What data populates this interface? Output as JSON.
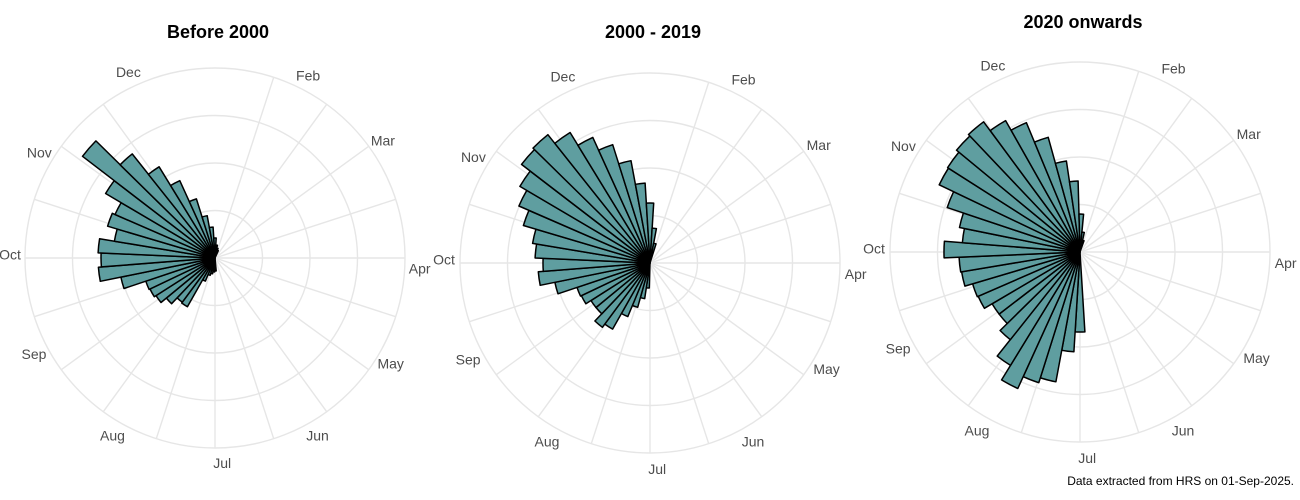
{
  "caption": "Data extracted from HRS on 01-Sep-2025.",
  "colors": {
    "bar_fill": "#5f9ea0",
    "bar_stroke": "#000000",
    "grid": "#e6e6e6",
    "label": "#4d4d4d"
  },
  "chart_data": [
    {
      "type": "polar-bar",
      "title": "Before 2000",
      "month_labels": [
        "Dec",
        "Feb",
        "Mar",
        "Apr",
        "May",
        "Jun",
        "Jul",
        "Aug",
        "Sep",
        "Oct",
        "Nov"
      ],
      "grid_rings": 4,
      "rmax": 190,
      "bars": [
        {
          "angle": 88,
          "value": 13
        },
        {
          "angle": 95,
          "value": 14
        },
        {
          "angle": 102,
          "value": 16
        },
        {
          "angle": 109,
          "value": 18
        },
        {
          "angle": 116,
          "value": 25
        },
        {
          "angle": 123,
          "value": 56
        },
        {
          "angle": 130,
          "value": 55
        },
        {
          "angle": 137,
          "value": 63
        },
        {
          "angle": 144,
          "value": 70
        },
        {
          "angle": 151,
          "value": 72
        },
        {
          "angle": 158,
          "value": 73
        },
        {
          "angle": 165,
          "value": 96
        },
        {
          "angle": 172,
          "value": 117
        },
        {
          "angle": 179,
          "value": 114
        },
        {
          "angle": 186,
          "value": 117
        },
        {
          "angle": 193,
          "value": 102
        },
        {
          "angle": 200,
          "value": 112
        },
        {
          "angle": 207,
          "value": 109
        },
        {
          "angle": 214,
          "value": 127
        },
        {
          "angle": 221,
          "value": 167
        },
        {
          "angle": 228,
          "value": 133
        },
        {
          "angle": 235,
          "value": 107
        },
        {
          "angle": 242,
          "value": 85
        },
        {
          "angle": 249,
          "value": 62
        },
        {
          "angle": 256,
          "value": 43
        },
        {
          "angle": 263,
          "value": 31
        },
        {
          "angle": 270,
          "value": 20
        },
        {
          "angle": 277,
          "value": 13
        },
        {
          "angle": 284,
          "value": 10
        },
        {
          "angle": 291,
          "value": 8
        }
      ]
    },
    {
      "type": "polar-bar",
      "title": "2000 - 2019",
      "month_labels": [
        "Dec",
        "Feb",
        "Mar",
        "Apr",
        "May",
        "Jun",
        "Jul",
        "Aug",
        "Sep",
        "Oct",
        "Nov"
      ],
      "grid_rings": 4,
      "rmax": 190,
      "bars": [
        {
          "angle": 95,
          "value": 25
        },
        {
          "angle": 102,
          "value": 36
        },
        {
          "angle": 109,
          "value": 46
        },
        {
          "angle": 116,
          "value": 58
        },
        {
          "angle": 123,
          "value": 76
        },
        {
          "angle": 130,
          "value": 80
        },
        {
          "angle": 137,
          "value": 70
        },
        {
          "angle": 144,
          "value": 70
        },
        {
          "angle": 151,
          "value": 76
        },
        {
          "angle": 158,
          "value": 77
        },
        {
          "angle": 165,
          "value": 97
        },
        {
          "angle": 172,
          "value": 112
        },
        {
          "angle": 179,
          "value": 107
        },
        {
          "angle": 186,
          "value": 115
        },
        {
          "angle": 193,
          "value": 119
        },
        {
          "angle": 200,
          "value": 132
        },
        {
          "angle": 207,
          "value": 143
        },
        {
          "angle": 214,
          "value": 151
        },
        {
          "angle": 221,
          "value": 162
        },
        {
          "angle": 228,
          "value": 164
        },
        {
          "angle": 235,
          "value": 153
        },
        {
          "angle": 242,
          "value": 138
        },
        {
          "angle": 249,
          "value": 124
        },
        {
          "angle": 256,
          "value": 104
        },
        {
          "angle": 263,
          "value": 80
        },
        {
          "angle": 270,
          "value": 60
        },
        {
          "angle": 277,
          "value": 35
        },
        {
          "angle": 284,
          "value": 20
        }
      ]
    },
    {
      "type": "polar-bar",
      "title": "2020 onwards",
      "month_labels": [
        "Dec",
        "Feb",
        "Mar",
        "Apr",
        "May",
        "Jun",
        "Jul",
        "Aug",
        "Sep",
        "Oct",
        "Nov"
      ],
      "grid_rings": 4,
      "rmax": 190,
      "bars": [
        {
          "angle": 90,
          "value": 80
        },
        {
          "angle": 97,
          "value": 100
        },
        {
          "angle": 104,
          "value": 132
        },
        {
          "angle": 111,
          "value": 137
        },
        {
          "angle": 118,
          "value": 150
        },
        {
          "angle": 125,
          "value": 133
        },
        {
          "angle": 132,
          "value": 112
        },
        {
          "angle": 139,
          "value": 102
        },
        {
          "angle": 146,
          "value": 102
        },
        {
          "angle": 153,
          "value": 111
        },
        {
          "angle": 160,
          "value": 112
        },
        {
          "angle": 167,
          "value": 120
        },
        {
          "angle": 174,
          "value": 121
        },
        {
          "angle": 181,
          "value": 136
        },
        {
          "angle": 188,
          "value": 118
        },
        {
          "angle": 195,
          "value": 123
        },
        {
          "angle": 202,
          "value": 140
        },
        {
          "angle": 209,
          "value": 156
        },
        {
          "angle": 216,
          "value": 157
        },
        {
          "angle": 223,
          "value": 160
        },
        {
          "angle": 230,
          "value": 162
        },
        {
          "angle": 237,
          "value": 151
        },
        {
          "angle": 244,
          "value": 140
        },
        {
          "angle": 251,
          "value": 119
        },
        {
          "angle": 258,
          "value": 92
        },
        {
          "angle": 265,
          "value": 71
        },
        {
          "angle": 272,
          "value": 38
        },
        {
          "angle": 279,
          "value": 20
        },
        {
          "angle": 286,
          "value": 12
        }
      ]
    }
  ]
}
